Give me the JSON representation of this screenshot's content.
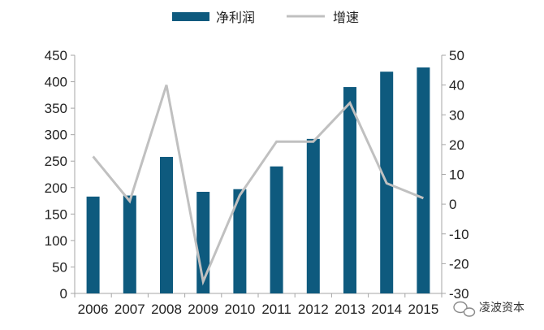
{
  "chart_data": {
    "type": "bar",
    "categories": [
      "2006",
      "2007",
      "2008",
      "2009",
      "2010",
      "2011",
      "2012",
      "2013",
      "2014",
      "2015"
    ],
    "series": [
      {
        "name": "净利润",
        "type": "bar",
        "axis": "left",
        "values": [
          183,
          185,
          258,
          192,
          197,
          240,
          292,
          390,
          419,
          427
        ]
      },
      {
        "name": "增速",
        "type": "line",
        "axis": "right",
        "values": [
          16,
          1,
          40,
          -26,
          3,
          21,
          21,
          34,
          7,
          2
        ]
      }
    ],
    "y_left": {
      "min": 0,
      "max": 450,
      "step": 50
    },
    "y_right": {
      "min": -30,
      "max": 50,
      "step": 10
    },
    "legend": "top",
    "grid": false
  },
  "colors": {
    "bar": "#0e5a7e",
    "line": "#c0c0c0",
    "axis": "#a6a6a6"
  },
  "watermark": {
    "text": "凌波资本",
    "icon": "wechat-icon"
  }
}
